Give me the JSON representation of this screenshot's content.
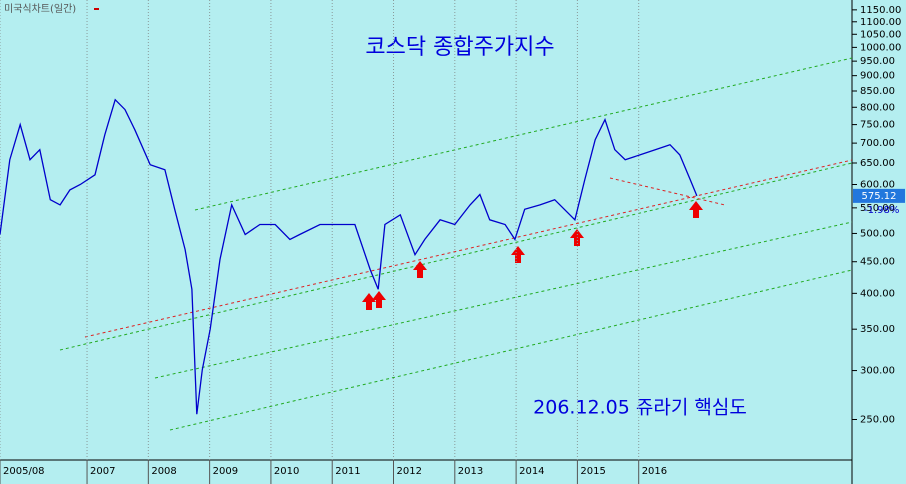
{
  "header": {
    "chart_mode": "미국식차트(일간)"
  },
  "chart_data": {
    "type": "line",
    "title": "코스닥 종합주가지수",
    "annotation": "206.12.05 쥬라기 핵심도",
    "log_scale": true,
    "grid": true,
    "x": [
      2005.58,
      2005.74,
      2005.91,
      2006.07,
      2006.23,
      2006.4,
      2006.56,
      2006.72,
      2006.89,
      2007.13,
      2007.29,
      2007.46,
      2007.62,
      2007.78,
      2008.03,
      2008.27,
      2008.43,
      2008.6,
      2008.71,
      2008.79,
      2008.88,
      2009.01,
      2009.17,
      2009.36,
      2009.58,
      2009.82,
      2010.07,
      2010.31,
      2010.47,
      2010.8,
      2011.05,
      2011.37,
      2011.62,
      2011.75,
      2011.86,
      2012.11,
      2012.35,
      2012.51,
      2012.76,
      2013.0,
      2013.25,
      2013.41,
      2013.57,
      2013.82,
      2013.98,
      2014.14,
      2014.39,
      2014.63,
      2014.96,
      2015.12,
      2015.29,
      2015.45,
      2015.61,
      2015.78,
      2016.02,
      2016.27,
      2016.51,
      2016.67,
      2016.84,
      2016.95
    ],
    "series": [
      {
        "color": "#0000cc",
        "values": [
          498,
          658,
          750,
          658,
          683,
          567,
          556,
          588,
          600,
          622,
          722,
          823,
          793,
          736,
          646,
          634,
          547,
          471,
          406,
          255,
          301,
          350,
          454,
          556,
          498,
          517,
          517,
          489,
          498,
          517,
          517,
          517,
          437,
          406,
          517,
          536,
          462,
          489,
          526,
          517,
          556,
          578,
          526,
          517,
          489,
          547,
          556,
          567,
          526,
          611,
          709,
          764,
          683,
          658,
          670,
          683,
          696,
          670,
          611,
          575.12
        ]
      }
    ],
    "last_value": 575.12,
    "change_label": "-1.98%",
    "xlim": [
      2005.58,
      2019.48
    ],
    "xticks": [
      {
        "value": 2005.58,
        "label": "2005/08"
      },
      2007,
      2008,
      2009,
      2010,
      2011,
      2012,
      2013,
      2014,
      2015,
      2016
    ],
    "ylim": [
      215,
      1193
    ],
    "yticks": [
      {
        "value": 250,
        "label": "250.00"
      },
      {
        "value": 300,
        "label": "300.00"
      },
      {
        "value": 350,
        "label": "350.00"
      },
      {
        "value": 400,
        "label": "400.00"
      },
      {
        "value": 450,
        "label": "450.00"
      },
      {
        "value": 500,
        "label": "500.00"
      },
      {
        "value": 550,
        "label": "550.00"
      },
      {
        "value": 600,
        "label": "600.00"
      },
      {
        "value": 650,
        "label": "650.00"
      },
      {
        "value": 700,
        "label": "700.00"
      },
      {
        "value": 750,
        "label": "750.00"
      },
      {
        "value": 800,
        "label": "800.00"
      },
      {
        "value": 850,
        "label": "850.00"
      },
      {
        "value": 900,
        "label": "900.00"
      },
      {
        "value": 950,
        "label": "950.00"
      },
      {
        "value": 1000,
        "label": "1000.00"
      },
      {
        "value": 1050,
        "label": "1050.00"
      },
      {
        "value": 1100,
        "label": "1100.00"
      },
      {
        "value": 1150,
        "label": "1150.00"
      }
    ]
  }
}
